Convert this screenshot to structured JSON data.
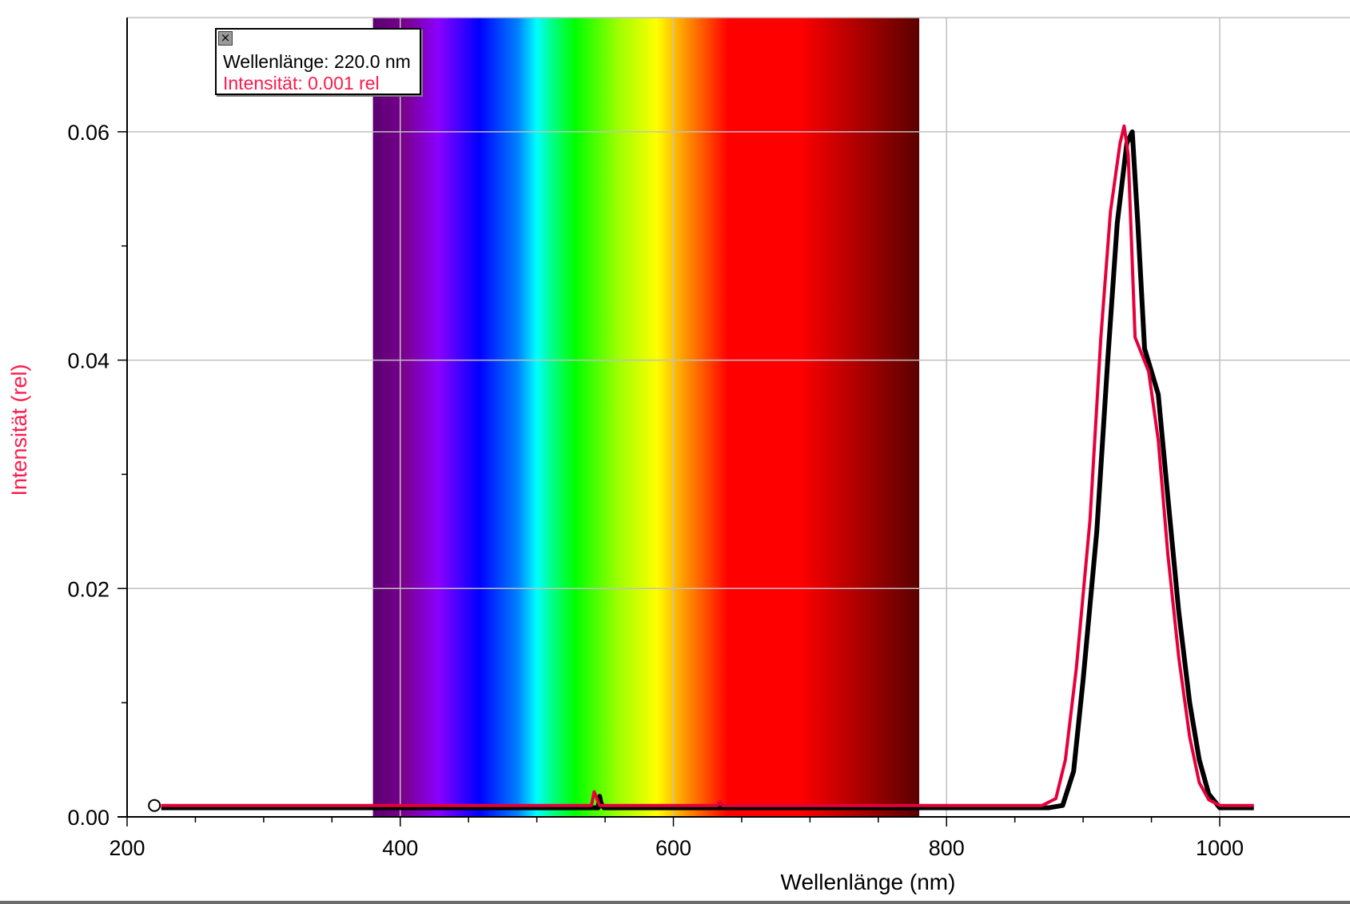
{
  "colors": {
    "series_dark": "#000000",
    "series_red": "#e6003a",
    "grid": "#c0c0c0",
    "ylabel": "#ff1a4b"
  },
  "readout": {
    "close_icon": "close-icon",
    "wavelength_text": "Wellenlänge: 220.0 nm",
    "intensity_text": "Intensität: 0.001 rel",
    "intensity_color": "#ff1a4b"
  },
  "chart_data": {
    "type": "line",
    "title": "",
    "xlabel": "Wellenlänge (nm)",
    "ylabel": "Intensität (rel)",
    "xlim": [
      200,
      1025
    ],
    "ylim": [
      0,
      0.07
    ],
    "grid": true,
    "x_ticks": [
      200,
      400,
      600,
      800,
      1000
    ],
    "x_tick_labels": [
      "200",
      "400",
      "600",
      "800",
      "1000"
    ],
    "y_ticks": [
      0.0,
      0.02,
      0.04,
      0.06
    ],
    "y_tick_labels": [
      "0.00",
      "0.02",
      "0.04",
      "0.06"
    ],
    "spectrum_band_nm": [
      380,
      780
    ],
    "cursor_marker": {
      "x": 220,
      "y": 0.001
    },
    "series": [
      {
        "color": "#000000",
        "x": [
          225,
          400,
          545,
          546,
          547,
          549,
          600,
          700,
          800,
          875,
          885,
          893,
          900,
          910,
          918,
          925,
          932,
          936,
          940,
          945,
          950,
          955,
          962,
          970,
          978,
          985,
          992,
          1000,
          1025
        ],
        "y": [
          0.0008,
          0.0008,
          0.0008,
          0.0018,
          0.0012,
          0.0008,
          0.0008,
          0.0008,
          0.0008,
          0.0008,
          0.001,
          0.004,
          0.012,
          0.025,
          0.04,
          0.052,
          0.059,
          0.06,
          0.052,
          0.041,
          0.039,
          0.037,
          0.028,
          0.018,
          0.01,
          0.005,
          0.002,
          0.0008,
          0.0008
        ]
      },
      {
        "color": "#e6003a",
        "x": [
          225,
          400,
          540,
          542,
          544,
          546,
          600,
          632,
          634,
          636,
          700,
          800,
          870,
          880,
          887,
          895,
          905,
          913,
          920,
          927,
          930,
          933,
          938,
          943,
          948,
          955,
          962,
          970,
          978,
          985,
          992,
          1000,
          1025
        ],
        "y": [
          0.001,
          0.001,
          0.001,
          0.0022,
          0.0016,
          0.001,
          0.001,
          0.001,
          0.0013,
          0.001,
          0.001,
          0.001,
          0.001,
          0.0016,
          0.005,
          0.013,
          0.026,
          0.042,
          0.053,
          0.059,
          0.0605,
          0.058,
          0.042,
          0.0405,
          0.039,
          0.033,
          0.023,
          0.014,
          0.007,
          0.003,
          0.0015,
          0.001,
          0.001
        ]
      }
    ]
  }
}
